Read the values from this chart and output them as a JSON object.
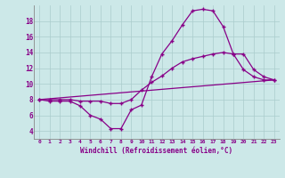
{
  "xlabel": "Windchill (Refroidissement éolien,°C)",
  "bg_color": "#cce8e8",
  "line_color": "#880088",
  "xlim": [
    -0.5,
    23.5
  ],
  "ylim": [
    3.0,
    20.0
  ],
  "xticks": [
    0,
    1,
    2,
    3,
    4,
    5,
    6,
    7,
    8,
    9,
    10,
    11,
    12,
    13,
    14,
    15,
    16,
    17,
    18,
    19,
    20,
    21,
    22,
    23
  ],
  "yticks": [
    4,
    6,
    8,
    10,
    12,
    14,
    16,
    18
  ],
  "line1_x": [
    0,
    1,
    2,
    3,
    4,
    5,
    6,
    7,
    8,
    9,
    10,
    11,
    12,
    13,
    14,
    15,
    16,
    17,
    18,
    19,
    20,
    21,
    22,
    23
  ],
  "line1_y": [
    8,
    7.8,
    7.8,
    7.8,
    7.2,
    6.0,
    5.5,
    4.3,
    4.3,
    6.7,
    7.3,
    10.9,
    13.8,
    15.5,
    17.5,
    19.3,
    19.5,
    19.3,
    17.3,
    13.8,
    11.8,
    10.9,
    10.5,
    10.5
  ],
  "line2_x": [
    0,
    1,
    2,
    3,
    4,
    5,
    6,
    7,
    8,
    9,
    10,
    11,
    12,
    13,
    14,
    15,
    16,
    17,
    18,
    19,
    20,
    21,
    22,
    23
  ],
  "line2_y": [
    8,
    8,
    8,
    8,
    7.8,
    7.8,
    7.8,
    7.5,
    7.5,
    8.0,
    9.2,
    10.2,
    11.0,
    12.0,
    12.8,
    13.2,
    13.5,
    13.8,
    14.0,
    13.8,
    13.8,
    11.8,
    10.9,
    10.5
  ],
  "line3_x": [
    0,
    23
  ],
  "line3_y": [
    8,
    10.5
  ]
}
